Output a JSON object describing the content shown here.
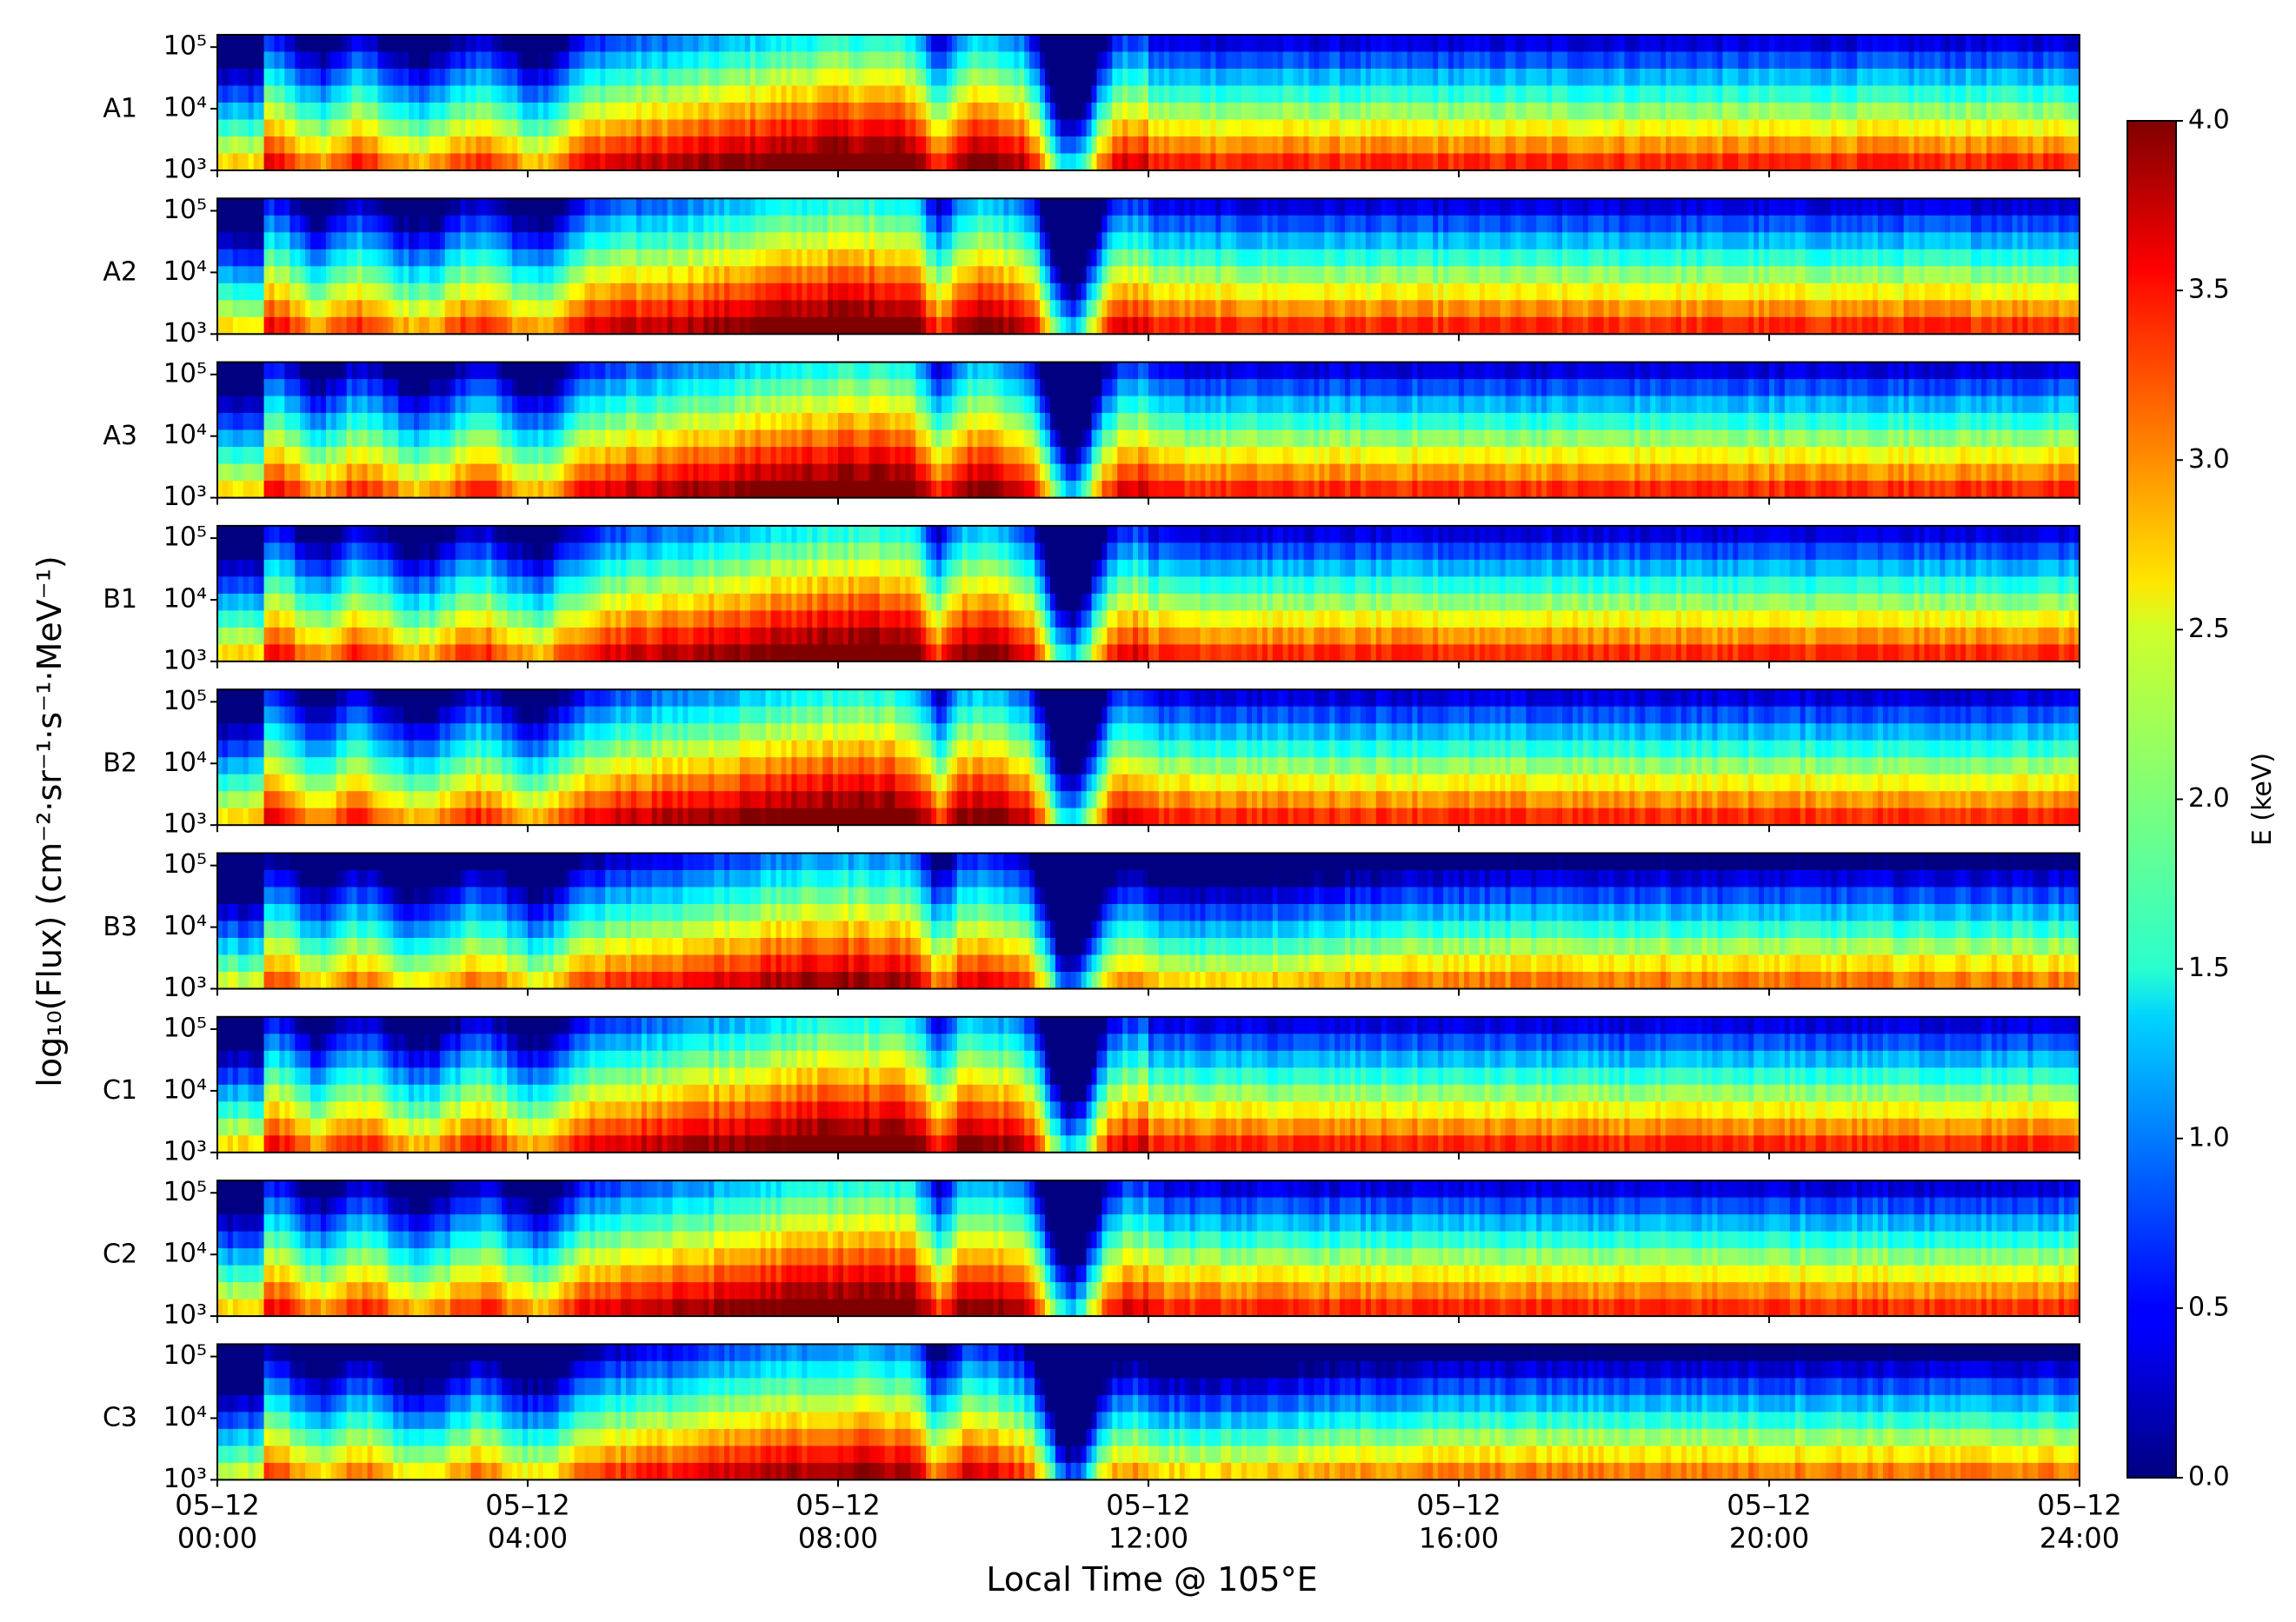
{
  "chart_data": {
    "type": "heatmap",
    "ylabel": "log₁₀(Flux) (cm⁻²·sr⁻¹·s⁻¹·MeV⁻¹)",
    "xlabel": "Local Time @ 105°E",
    "panels": [
      "A1",
      "A2",
      "A3",
      "B1",
      "B2",
      "B3",
      "C1",
      "C2",
      "C3"
    ],
    "y_tick_labels": [
      "10⁵",
      "10⁴",
      "10³"
    ],
    "y_ticks_log10": [
      5,
      4,
      3
    ],
    "ylim_log10": [
      3,
      5.2
    ],
    "x_range_hours": [
      0,
      24
    ],
    "x_ticks": [
      {
        "hour": 0,
        "date": "05–12",
        "time": "00:00"
      },
      {
        "hour": 4,
        "date": "05–12",
        "time": "04:00"
      },
      {
        "hour": 8,
        "date": "05–12",
        "time": "08:00"
      },
      {
        "hour": 12,
        "date": "05–12",
        "time": "12:00"
      },
      {
        "hour": 16,
        "date": "05–12",
        "time": "16:00"
      },
      {
        "hour": 20,
        "date": "05–12",
        "time": "20:00"
      },
      {
        "hour": 24,
        "date": "05–12",
        "time": "24:00"
      }
    ],
    "colorbar": {
      "label": "E (keV)",
      "range": [
        0.0,
        4.0
      ],
      "ticks": [
        "0.0",
        "0.5",
        "1.0",
        "1.5",
        "2.0",
        "2.5",
        "3.0",
        "3.5",
        "4.0"
      ],
      "tick_values": [
        0,
        0.5,
        1,
        1.5,
        2,
        2.5,
        3,
        3.5,
        4
      ],
      "colormap": "jet"
    }
  }
}
